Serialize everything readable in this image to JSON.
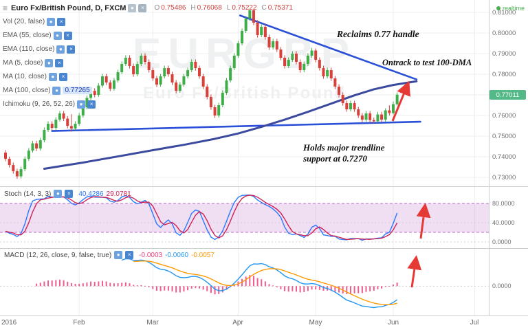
{
  "header": {
    "title": "Euro Fx/British Pound, D, FXCM",
    "ohlc": [
      {
        "k": "O",
        "v": "0.75486"
      },
      {
        "k": "H",
        "v": "0.76068"
      },
      {
        "k": "L",
        "v": "0.75222"
      },
      {
        "k": "C",
        "v": "0.75371"
      }
    ],
    "realtime": "realtime"
  },
  "icons": {
    "menu": "≡",
    "eye": "●",
    "close": "×"
  },
  "indicators": [
    {
      "label": "Vol (20, false)"
    },
    {
      "label": "EMA (55, close)"
    },
    {
      "label": "EMA (110, close)"
    },
    {
      "label": "MA (5, close)"
    },
    {
      "label": "MA (10, close)"
    },
    {
      "label": "MA (100, close)",
      "value": "0.77265"
    },
    {
      "label": "Ichimoku (9, 26, 52, 26)"
    }
  ],
  "annotations": [
    {
      "text": "Reclaims 0.77 handle"
    },
    {
      "text": "Ontrack to test 100-DMA"
    },
    {
      "text": "Holds major trendline support at 0.7270"
    }
  ],
  "price_axis": {
    "labels": [
      "0.81000",
      "0.80000",
      "0.79000",
      "0.78000",
      "0.76000",
      "0.75000",
      "0.74000",
      "0.73000"
    ],
    "last": "0.77011"
  },
  "stoch": {
    "label": "Stoch (14, 3, 3)",
    "values": [
      "40.4286",
      "29.0781"
    ],
    "axis": [
      "80.0000",
      "40.0000",
      "0.0000"
    ]
  },
  "macd": {
    "label": "MACD (12, 26, close, 9, false, true)",
    "values": [
      "-0.0003",
      "-0.0060",
      "-0.0057"
    ],
    "axis": [
      "0.0000"
    ]
  },
  "colors": {
    "up": "#3fae49",
    "down": "#d8403a",
    "trendline": "#2b50d8",
    "ma100": "#3b4a9e",
    "stoch_k": "#2979ff",
    "stoch_d": "#cc2255",
    "stoch_band": "#ba68c8",
    "macd_line": "#2196f3",
    "macd_signal": "#ff9800",
    "macd_hist": "#ec407a",
    "arrow": "#e53935",
    "grid": "#efefef",
    "last_price_bg": "#53b987"
  },
  "chart_data": {
    "type": "candlestick",
    "symbol": "EURGBP",
    "watermark_line2": "Euro Fx/British Pound",
    "timeframe": "D",
    "exchange": "FXCM",
    "price_range": [
      0.7257,
      0.816
    ],
    "ticks": [
      {
        "i": 0,
        "label": "2016"
      },
      {
        "i": 19,
        "label": "Feb"
      },
      {
        "i": 38,
        "label": "Mar"
      },
      {
        "i": 60,
        "label": "Apr"
      },
      {
        "i": 80,
        "label": "May"
      },
      {
        "i": 100,
        "label": "Jun"
      },
      {
        "i": 121,
        "label": "Jul"
      }
    ],
    "candles": [
      [
        0.742,
        0.7432,
        0.7378,
        0.739
      ],
      [
        0.739,
        0.7401,
        0.7348,
        0.736
      ],
      [
        0.736,
        0.7372,
        0.7318,
        0.733
      ],
      [
        0.733,
        0.7342,
        0.7293,
        0.7305
      ],
      [
        0.7305,
        0.7352,
        0.7295,
        0.734
      ],
      [
        0.734,
        0.7402,
        0.733,
        0.739
      ],
      [
        0.739,
        0.7442,
        0.738,
        0.743
      ],
      [
        0.743,
        0.7477,
        0.742,
        0.7465
      ],
      [
        0.7465,
        0.7477,
        0.7428,
        0.744
      ],
      [
        0.744,
        0.7492,
        0.743,
        0.748
      ],
      [
        0.748,
        0.7542,
        0.747,
        0.753
      ],
      [
        0.753,
        0.7572,
        0.752,
        0.756
      ],
      [
        0.756,
        0.7572,
        0.7528,
        0.754
      ],
      [
        0.754,
        0.7592,
        0.753,
        0.758
      ],
      [
        0.758,
        0.7622,
        0.757,
        0.761
      ],
      [
        0.761,
        0.7622,
        0.7573,
        0.7585
      ],
      [
        0.7585,
        0.7597,
        0.7538,
        0.755
      ],
      [
        0.7549,
        0.7607,
        0.7522,
        0.7537
      ],
      [
        0.7537,
        0.7572,
        0.7527,
        0.756
      ],
      [
        0.756,
        0.7612,
        0.755,
        0.76
      ],
      [
        0.76,
        0.7652,
        0.759,
        0.764
      ],
      [
        0.764,
        0.7697,
        0.763,
        0.7685
      ],
      [
        0.7685,
        0.7732,
        0.7675,
        0.772
      ],
      [
        0.772,
        0.7732,
        0.7688,
        0.77
      ],
      [
        0.77,
        0.7757,
        0.769,
        0.7745
      ],
      [
        0.7745,
        0.7802,
        0.7735,
        0.779
      ],
      [
        0.779,
        0.7802,
        0.7748,
        0.776
      ],
      [
        0.776,
        0.7772,
        0.7718,
        0.773
      ],
      [
        0.773,
        0.7782,
        0.772,
        0.777
      ],
      [
        0.777,
        0.7822,
        0.776,
        0.781
      ],
      [
        0.781,
        0.7862,
        0.78,
        0.785
      ],
      [
        0.785,
        0.7892,
        0.784,
        0.788
      ],
      [
        0.788,
        0.7892,
        0.7828,
        0.784
      ],
      [
        0.784,
        0.7852,
        0.7788,
        0.78
      ],
      [
        0.78,
        0.7862,
        0.779,
        0.785
      ],
      [
        0.785,
        0.7902,
        0.784,
        0.789
      ],
      [
        0.789,
        0.7902,
        0.7848,
        0.786
      ],
      [
        0.786,
        0.7872,
        0.7808,
        0.782
      ],
      [
        0.782,
        0.7832,
        0.7768,
        0.778
      ],
      [
        0.778,
        0.7792,
        0.7738,
        0.775
      ],
      [
        0.775,
        0.7802,
        0.774,
        0.779
      ],
      [
        0.779,
        0.7842,
        0.778,
        0.783
      ],
      [
        0.783,
        0.7842,
        0.7788,
        0.78
      ],
      [
        0.78,
        0.7812,
        0.7748,
        0.776
      ],
      [
        0.776,
        0.7772,
        0.7708,
        0.772
      ],
      [
        0.772,
        0.7762,
        0.771,
        0.775
      ],
      [
        0.775,
        0.7802,
        0.774,
        0.779
      ],
      [
        0.779,
        0.7832,
        0.778,
        0.782
      ],
      [
        0.782,
        0.7872,
        0.781,
        0.786
      ],
      [
        0.786,
        0.7872,
        0.7818,
        0.783
      ],
      [
        0.783,
        0.7842,
        0.7778,
        0.779
      ],
      [
        0.779,
        0.7802,
        0.7728,
        0.774
      ],
      [
        0.774,
        0.7752,
        0.7678,
        0.769
      ],
      [
        0.769,
        0.7702,
        0.7628,
        0.764
      ],
      [
        0.764,
        0.7652,
        0.7588,
        0.76
      ],
      [
        0.76,
        0.7662,
        0.759,
        0.765
      ],
      [
        0.765,
        0.7722,
        0.764,
        0.771
      ],
      [
        0.771,
        0.7782,
        0.77,
        0.777
      ],
      [
        0.777,
        0.7842,
        0.776,
        0.783
      ],
      [
        0.783,
        0.7902,
        0.782,
        0.789
      ],
      [
        0.789,
        0.7962,
        0.788,
        0.795
      ],
      [
        0.795,
        0.8022,
        0.794,
        0.801
      ],
      [
        0.801,
        0.8082,
        0.8,
        0.807
      ],
      [
        0.807,
        0.8118,
        0.806,
        0.811
      ],
      [
        0.811,
        0.8118,
        0.8038,
        0.805
      ],
      [
        0.805,
        0.8062,
        0.7978,
        0.799
      ],
      [
        0.799,
        0.8042,
        0.798,
        0.803
      ],
      [
        0.803,
        0.8042,
        0.7968,
        0.798
      ],
      [
        0.798,
        0.7992,
        0.7918,
        0.793
      ],
      [
        0.793,
        0.7972,
        0.792,
        0.796
      ],
      [
        0.796,
        0.7972,
        0.7908,
        0.792
      ],
      [
        0.792,
        0.7932,
        0.7868,
        0.788
      ],
      [
        0.788,
        0.7892,
        0.7828,
        0.784
      ],
      [
        0.784,
        0.7882,
        0.783,
        0.787
      ],
      [
        0.787,
        0.7912,
        0.786,
        0.79
      ],
      [
        0.79,
        0.7912,
        0.7848,
        0.786
      ],
      [
        0.786,
        0.7872,
        0.7808,
        0.782
      ],
      [
        0.782,
        0.7862,
        0.781,
        0.785
      ],
      [
        0.785,
        0.7902,
        0.784,
        0.789
      ],
      [
        0.789,
        0.7928,
        0.788,
        0.7915
      ],
      [
        0.7915,
        0.7925,
        0.7858,
        0.787
      ],
      [
        0.787,
        0.7882,
        0.7818,
        0.783
      ],
      [
        0.783,
        0.7842,
        0.7778,
        0.779
      ],
      [
        0.779,
        0.7832,
        0.778,
        0.782
      ],
      [
        0.782,
        0.7832,
        0.7768,
        0.778
      ],
      [
        0.778,
        0.7792,
        0.7728,
        0.774
      ],
      [
        0.774,
        0.7752,
        0.7688,
        0.77
      ],
      [
        0.77,
        0.7712,
        0.7648,
        0.766
      ],
      [
        0.766,
        0.7672,
        0.7618,
        0.763
      ],
      [
        0.763,
        0.7672,
        0.762,
        0.766
      ],
      [
        0.766,
        0.7672,
        0.7618,
        0.763
      ],
      [
        0.763,
        0.7642,
        0.7588,
        0.76
      ],
      [
        0.76,
        0.7612,
        0.7568,
        0.758
      ],
      [
        0.758,
        0.7622,
        0.757,
        0.761
      ],
      [
        0.761,
        0.7622,
        0.7565,
        0.7578
      ],
      [
        0.7578,
        0.759,
        0.7562,
        0.7572
      ],
      [
        0.7572,
        0.7618,
        0.7565,
        0.7605
      ],
      [
        0.7605,
        0.7618,
        0.7568,
        0.758
      ],
      [
        0.758,
        0.7635,
        0.757,
        0.7625
      ],
      [
        0.7625,
        0.765,
        0.76,
        0.7612
      ],
      [
        0.7612,
        0.7668,
        0.7605,
        0.7655
      ],
      [
        0.7655,
        0.7712,
        0.7648,
        0.7701
      ]
    ],
    "ma100_points": [
      [
        10,
        0.7342
      ],
      [
        20,
        0.7372
      ],
      [
        30,
        0.7405
      ],
      [
        38,
        0.7432
      ],
      [
        46,
        0.7458
      ],
      [
        54,
        0.7487
      ],
      [
        60,
        0.7513
      ],
      [
        66,
        0.7545
      ],
      [
        72,
        0.758
      ],
      [
        78,
        0.7618
      ],
      [
        84,
        0.7658
      ],
      [
        90,
        0.7698
      ],
      [
        95,
        0.7727
      ],
      [
        100,
        0.7748
      ],
      [
        106,
        0.7766
      ]
    ],
    "trendlines": [
      {
        "from": [
          60.5,
          0.8085
        ],
        "to": [
          106,
          0.7775
        ]
      },
      {
        "from": [
          12,
          0.7525
        ],
        "to": [
          107,
          0.757
        ]
      }
    ],
    "arrows": [
      {
        "from": [
          571,
          176
        ],
        "to": [
          593,
          123
        ]
      },
      {
        "from": [
          612,
          347
        ],
        "to": [
          618,
          301
        ]
      },
      {
        "from": [
          599,
          418
        ],
        "to": [
          605,
          377
        ]
      }
    ]
  }
}
